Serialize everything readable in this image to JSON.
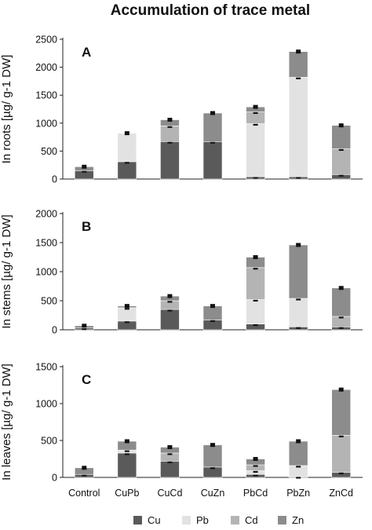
{
  "chart_data": {
    "type": "bar",
    "title": "Accumulation of trace metal",
    "categories": [
      "Control",
      "CuPb",
      "CuCd",
      "CuZn",
      "PbCd",
      "PbZn",
      "ZnCd"
    ],
    "legend": {
      "placement": "bottom",
      "items": [
        {
          "name": "Cu",
          "color": "#5a5a5a"
        },
        {
          "name": "Pb",
          "color": "#e2e2e2"
        },
        {
          "name": "Cd",
          "color": "#b4b4b4"
        },
        {
          "name": "Zn",
          "color": "#8c8c8c"
        }
      ]
    },
    "panels": [
      {
        "label": "A",
        "ylabel": "In roots [µg/ g-1 DW]",
        "ylim": [
          0,
          2500
        ],
        "yticks": [
          0,
          500,
          1000,
          1500,
          2000,
          2500
        ],
        "series": [
          {
            "name": "Cu",
            "values": [
              150,
              310,
              670,
              670,
              40,
              40,
              80
            ]
          },
          {
            "name": "Pb",
            "values": [
              0,
              510,
              0,
              0,
              950,
              1780,
              0
            ]
          },
          {
            "name": "Cd",
            "values": [
              0,
              0,
              280,
              0,
              210,
              0,
              460
            ]
          },
          {
            "name": "Zn",
            "values": [
              70,
              0,
              110,
              510,
              90,
              460,
              420
            ]
          }
        ]
      },
      {
        "label": "B",
        "ylabel": "In stems [µg/ g-1 DW]",
        "ylim": [
          0,
          2000
        ],
        "yticks": [
          0,
          500,
          1000,
          1500,
          2000
        ],
        "series": [
          {
            "name": "Cu",
            "values": [
              30,
              150,
              350,
              170,
              100,
              50,
              50
            ]
          },
          {
            "name": "Pb",
            "values": [
              0,
              230,
              0,
              0,
              420,
              490,
              0
            ]
          },
          {
            "name": "Cd",
            "values": [
              0,
              0,
              150,
              0,
              550,
              0,
              180
            ]
          },
          {
            "name": "Zn",
            "values": [
              40,
              30,
              80,
              240,
              180,
              920,
              490
            ]
          }
        ]
      },
      {
        "label": "C",
        "ylabel": "In leaves [µg/ g-1 DW]",
        "ylim": [
          0,
          1500
        ],
        "yticks": [
          0,
          500,
          1000,
          1500
        ],
        "series": [
          {
            "name": "Cu",
            "values": [
              40,
              330,
              220,
              140,
              40,
              10,
              70
            ]
          },
          {
            "name": "Pb",
            "values": [
              0,
              40,
              0,
              0,
              50,
              150,
              0
            ]
          },
          {
            "name": "Cd",
            "values": [
              0,
              0,
              110,
              0,
              80,
              0,
              500
            ]
          },
          {
            "name": "Zn",
            "values": [
              90,
              120,
              80,
              300,
              80,
              330,
              620
            ]
          }
        ]
      }
    ]
  }
}
